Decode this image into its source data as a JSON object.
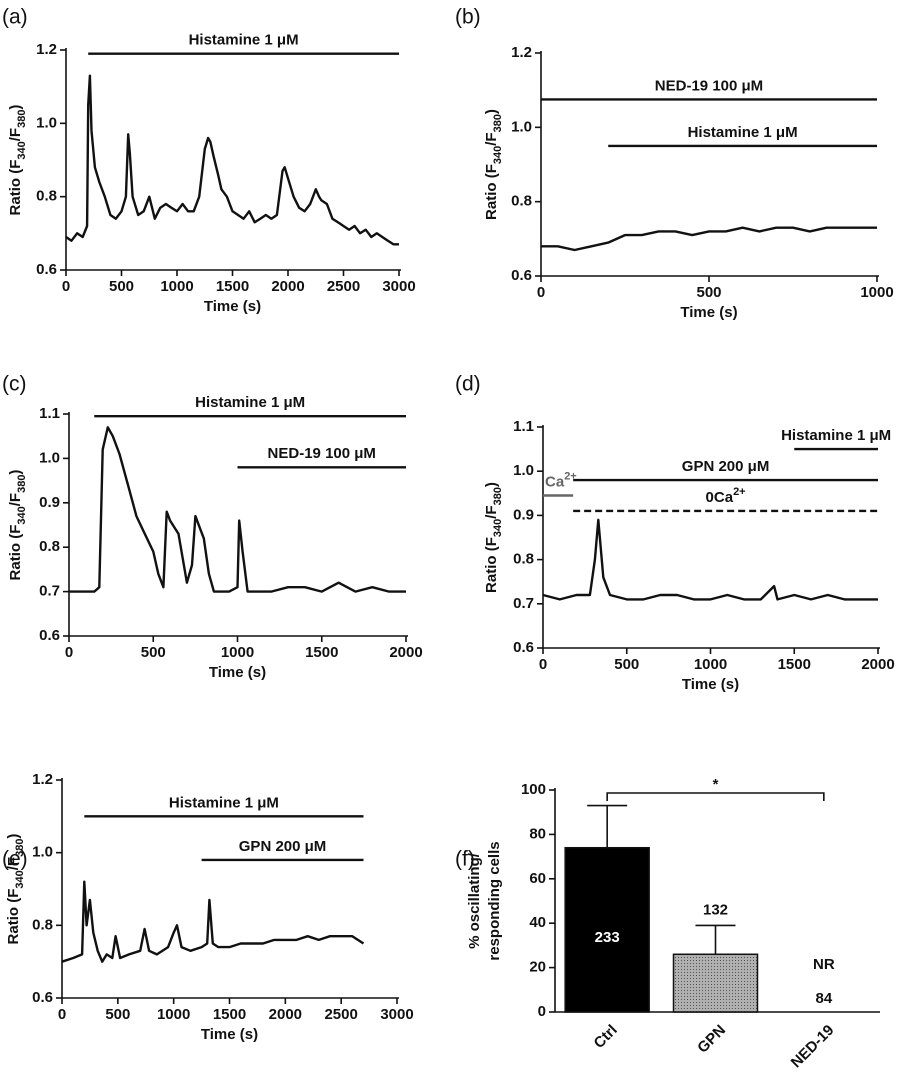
{
  "chart_data": [
    {
      "type": "line",
      "panel_label": "(a)",
      "xlabel": "Time (s)",
      "ylabel_parts": [
        "Ratio (F",
        "340",
        "/F",
        "380",
        ")"
      ],
      "xlim": [
        0,
        3000
      ],
      "ylim": [
        0.6,
        1.2
      ],
      "xticks": [
        0,
        500,
        1000,
        1500,
        2000,
        2500,
        3000
      ],
      "yticks": [
        0.6,
        0.8,
        {
          "value": 1,
          "label": "1.0"
        },
        1.2
      ],
      "color": "#111111",
      "annotations": [
        {
          "label": "Histamine 1 μM",
          "x": [
            200,
            3000
          ],
          "y": 1.19
        }
      ],
      "x": [
        0,
        50,
        100,
        150,
        190,
        200,
        215,
        230,
        260,
        300,
        350,
        400,
        450,
        500,
        540,
        560,
        575,
        600,
        650,
        700,
        750,
        800,
        850,
        900,
        950,
        1000,
        1050,
        1100,
        1150,
        1200,
        1250,
        1280,
        1300,
        1330,
        1370,
        1400,
        1450,
        1500,
        1550,
        1600,
        1650,
        1700,
        1750,
        1800,
        1850,
        1900,
        1950,
        1970,
        2000,
        2050,
        2100,
        2150,
        2200,
        2250,
        2280,
        2300,
        2350,
        2400,
        2450,
        2500,
        2550,
        2600,
        2650,
        2700,
        2750,
        2800,
        2850,
        2900,
        2950,
        3000
      ],
      "values": [
        0.69,
        0.68,
        0.7,
        0.69,
        0.72,
        1.05,
        1.13,
        0.98,
        0.88,
        0.84,
        0.8,
        0.75,
        0.74,
        0.76,
        0.8,
        0.97,
        0.92,
        0.8,
        0.75,
        0.76,
        0.8,
        0.74,
        0.77,
        0.78,
        0.77,
        0.76,
        0.78,
        0.76,
        0.76,
        0.8,
        0.93,
        0.96,
        0.95,
        0.91,
        0.86,
        0.82,
        0.8,
        0.76,
        0.75,
        0.74,
        0.76,
        0.73,
        0.74,
        0.75,
        0.74,
        0.75,
        0.87,
        0.88,
        0.85,
        0.8,
        0.77,
        0.76,
        0.78,
        0.82,
        0.8,
        0.79,
        0.78,
        0.74,
        0.73,
        0.72,
        0.71,
        0.72,
        0.7,
        0.71,
        0.69,
        0.7,
        0.69,
        0.68,
        0.67,
        0.67
      ]
    },
    {
      "type": "line",
      "panel_label": "(b)",
      "xlabel": "Time (s)",
      "ylabel_parts": [
        "Ratio (F",
        "340",
        "/F",
        "380",
        ")"
      ],
      "xlim": [
        0,
        1000
      ],
      "ylim": [
        0.6,
        1.2
      ],
      "xticks": [
        0,
        500,
        1000
      ],
      "yticks": [
        0.6,
        0.8,
        {
          "value": 1,
          "label": "1.0"
        },
        1.2
      ],
      "color": "#111111",
      "annotations": [
        {
          "label": "NED-19 100 μM",
          "x": [
            0,
            1000
          ],
          "y": 1.075
        },
        {
          "label": "Histamine 1 μM",
          "x": [
            200,
            1000
          ],
          "y": 0.95
        }
      ],
      "x": [
        0,
        50,
        100,
        150,
        200,
        250,
        300,
        350,
        400,
        450,
        500,
        550,
        600,
        650,
        700,
        750,
        800,
        850,
        900,
        950,
        1000
      ],
      "values": [
        0.68,
        0.68,
        0.67,
        0.68,
        0.69,
        0.71,
        0.71,
        0.72,
        0.72,
        0.71,
        0.72,
        0.72,
        0.73,
        0.72,
        0.73,
        0.73,
        0.72,
        0.73,
        0.73,
        0.73,
        0.73
      ]
    },
    {
      "type": "line",
      "panel_label": "(c)",
      "xlabel": "Time (s)",
      "ylabel_parts": [
        "Ratio (F",
        "340",
        "/F",
        "380",
        ")"
      ],
      "xlim": [
        0,
        2000
      ],
      "ylim": [
        0.6,
        1.1
      ],
      "xticks": [
        0,
        500,
        1000,
        1500,
        2000
      ],
      "yticks": [
        0.6,
        0.7,
        0.8,
        0.9,
        {
          "value": 1,
          "label": "1.0"
        },
        1.1
      ],
      "color": "#111111",
      "annotations": [
        {
          "label": "Histamine 1 μM",
          "x": [
            150,
            2000
          ],
          "y": 1.095
        },
        {
          "label": "NED-19 100 μM",
          "x": [
            1000,
            2000
          ],
          "y": 0.98
        }
      ],
      "x": [
        0,
        50,
        100,
        150,
        180,
        200,
        230,
        260,
        300,
        350,
        400,
        450,
        500,
        530,
        560,
        580,
        600,
        650,
        700,
        730,
        750,
        780,
        800,
        830,
        860,
        900,
        950,
        1000,
        1010,
        1030,
        1060,
        1100,
        1200,
        1300,
        1400,
        1500,
        1600,
        1700,
        1800,
        1900,
        2000
      ],
      "values": [
        0.7,
        0.7,
        0.7,
        0.7,
        0.71,
        1.02,
        1.07,
        1.05,
        1.01,
        0.94,
        0.87,
        0.83,
        0.79,
        0.74,
        0.71,
        0.88,
        0.86,
        0.83,
        0.72,
        0.76,
        0.87,
        0.84,
        0.82,
        0.74,
        0.7,
        0.7,
        0.7,
        0.71,
        0.86,
        0.79,
        0.7,
        0.7,
        0.7,
        0.71,
        0.71,
        0.7,
        0.72,
        0.7,
        0.71,
        0.7,
        0.7
      ]
    },
    {
      "type": "line",
      "panel_label": "(d)",
      "xlabel": "Time (s)",
      "ylabel_parts": [
        "Ratio (F",
        "340",
        "/F",
        "380",
        ")"
      ],
      "xlim": [
        0,
        2000
      ],
      "ylim": [
        0.6,
        1.1
      ],
      "xticks": [
        0,
        500,
        1000,
        1500,
        2000
      ],
      "yticks": [
        0.6,
        0.7,
        0.8,
        0.9,
        {
          "value": 1,
          "label": "1.0"
        },
        1.1
      ],
      "color": "#111111",
      "annotations": [
        {
          "label": "Histamine 1 μM",
          "x": [
            1500,
            2000
          ],
          "y": 1.05
        },
        {
          "label": "GPN 200 μM",
          "x": [
            180,
            2000
          ],
          "y": 0.98
        },
        {
          "label_parts": [
            "Ca",
            "2+"
          ],
          "x": [
            0,
            180
          ],
          "y": 0.945,
          "color": "#666666"
        },
        {
          "label_parts": [
            "0Ca",
            "2+"
          ],
          "x": [
            180,
            2000
          ],
          "y": 0.91,
          "dashed": true
        }
      ],
      "x": [
        0,
        100,
        200,
        280,
        310,
        330,
        360,
        400,
        500,
        600,
        700,
        800,
        900,
        1000,
        1100,
        1200,
        1300,
        1380,
        1400,
        1500,
        1600,
        1700,
        1800,
        1900,
        2000
      ],
      "values": [
        0.72,
        0.71,
        0.72,
        0.72,
        0.8,
        0.89,
        0.76,
        0.72,
        0.71,
        0.71,
        0.72,
        0.72,
        0.71,
        0.71,
        0.72,
        0.71,
        0.71,
        0.74,
        0.71,
        0.72,
        0.71,
        0.72,
        0.71,
        0.71,
        0.71
      ]
    },
    {
      "type": "line",
      "panel_label": "(e)",
      "xlabel": "Time (s)",
      "ylabel_parts": [
        "Ratio (F",
        "340",
        "/F",
        "380",
        ")"
      ],
      "xlim": [
        0,
        3000
      ],
      "ylim": [
        0.6,
        1.2
      ],
      "xticks": [
        0,
        500,
        1000,
        1500,
        2000,
        2500,
        3000
      ],
      "yticks": [
        0.6,
        0.8,
        {
          "value": 1,
          "label": "1.0"
        },
        1.2
      ],
      "color": "#111111",
      "annotations": [
        {
          "label": "Histamine 1 μM",
          "x": [
            200,
            2700
          ],
          "y": 1.1
        },
        {
          "label": "GPN 200 μM",
          "x": [
            1250,
            2700
          ],
          "y": 0.98
        }
      ],
      "x": [
        0,
        100,
        180,
        200,
        220,
        250,
        280,
        320,
        360,
        400,
        450,
        480,
        520,
        600,
        700,
        740,
        780,
        850,
        950,
        1000,
        1030,
        1070,
        1150,
        1250,
        1300,
        1320,
        1350,
        1400,
        1500,
        1600,
        1700,
        1800,
        1900,
        2000,
        2100,
        2200,
        2300,
        2400,
        2500,
        2600,
        2700
      ],
      "values": [
        0.7,
        0.71,
        0.72,
        0.92,
        0.8,
        0.87,
        0.78,
        0.73,
        0.7,
        0.72,
        0.71,
        0.77,
        0.71,
        0.72,
        0.73,
        0.79,
        0.73,
        0.72,
        0.74,
        0.78,
        0.8,
        0.74,
        0.73,
        0.74,
        0.75,
        0.87,
        0.75,
        0.74,
        0.74,
        0.75,
        0.75,
        0.75,
        0.76,
        0.76,
        0.76,
        0.77,
        0.76,
        0.77,
        0.77,
        0.77,
        0.75
      ]
    },
    {
      "type": "bar",
      "panel_label": "(f)",
      "ylabel_lines": [
        "% oscillating/",
        "responding cells"
      ],
      "categories": [
        "Ctrl",
        "GPN",
        "NED-19"
      ],
      "values": [
        74,
        26,
        0
      ],
      "errors": [
        19,
        13,
        null
      ],
      "colors": [
        "#000000",
        "#9a9a9a",
        "#ffffff"
      ],
      "n_labels": [
        "233",
        "132",
        "84"
      ],
      "nr_label": "NR",
      "significance": {
        "between": [
          0,
          2
        ],
        "label": "*"
      },
      "ylim": [
        0,
        100
      ],
      "yticks": [
        0,
        20,
        40,
        60,
        80,
        100
      ]
    }
  ]
}
